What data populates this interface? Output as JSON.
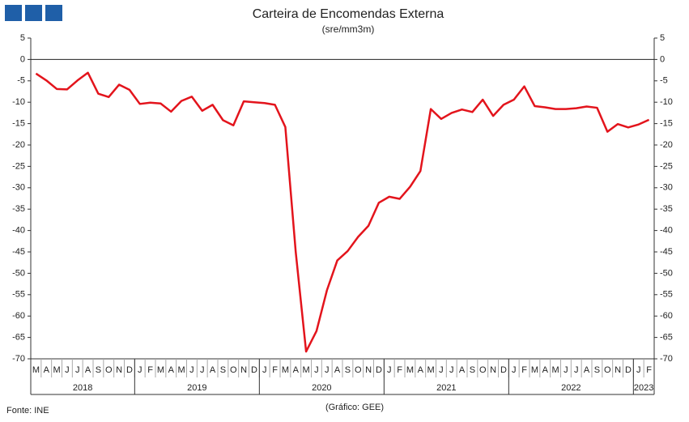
{
  "chart_data": {
    "type": "line",
    "title": "Carteira de Encomendas Externa",
    "subtitle": "(sre/mm3m)",
    "source": "Fonte: INE",
    "credit": "(Gráfico: GEE)",
    "categories": [
      "M",
      "A",
      "M",
      "J",
      "J",
      "A",
      "S",
      "O",
      "N",
      "D",
      "J",
      "F",
      "M",
      "A",
      "M",
      "J",
      "J",
      "A",
      "S",
      "O",
      "N",
      "D",
      "J",
      "F",
      "M",
      "A",
      "M",
      "J",
      "J",
      "A",
      "S",
      "O",
      "N",
      "D",
      "J",
      "F",
      "M",
      "A",
      "M",
      "J",
      "J",
      "A",
      "S",
      "O",
      "N",
      "D",
      "J",
      "F",
      "M",
      "A",
      "M",
      "J",
      "J",
      "A",
      "S",
      "O",
      "N",
      "D",
      "J",
      "F"
    ],
    "years": [
      "2018",
      "2019",
      "2020",
      "2021",
      "2022",
      "2023"
    ],
    "series": [
      {
        "name": "Carteira de Encomendas Externa",
        "color": "#e3141c",
        "values": [
          -3.3,
          -4.9,
          -6.9,
          -7.0,
          -4.9,
          -3.1,
          -8.0,
          -8.8,
          -5.9,
          -7.1,
          -10.4,
          -10.1,
          -10.3,
          -12.2,
          -9.7,
          -8.7,
          -12.0,
          -10.6,
          -14.2,
          -15.4,
          -9.8,
          -10.0,
          -10.2,
          -10.6,
          -15.8,
          -45,
          -68.3,
          -63.5,
          -54,
          -47,
          -44.8,
          -41.5,
          -38.9,
          -33.5,
          -32.1,
          -32.6,
          -29.8,
          -26.1,
          -11.6,
          -13.9,
          -12.5,
          -11.7,
          -12.3,
          -9.4,
          -13.2,
          -10.6,
          -9.4,
          -6.3,
          -10.9,
          -11.2,
          -11.6,
          -11.6,
          -11.4,
          -11.0,
          -11.3,
          -16.9,
          -15.1,
          -15.9,
          -15.2,
          -14.1
        ]
      }
    ],
    "ylim": [
      -70,
      5
    ],
    "yticks": [
      5,
      0,
      -5,
      -10,
      -15,
      -20,
      -25,
      -30,
      -35,
      -40,
      -45,
      -50,
      -55,
      -60,
      -65,
      -70
    ]
  }
}
